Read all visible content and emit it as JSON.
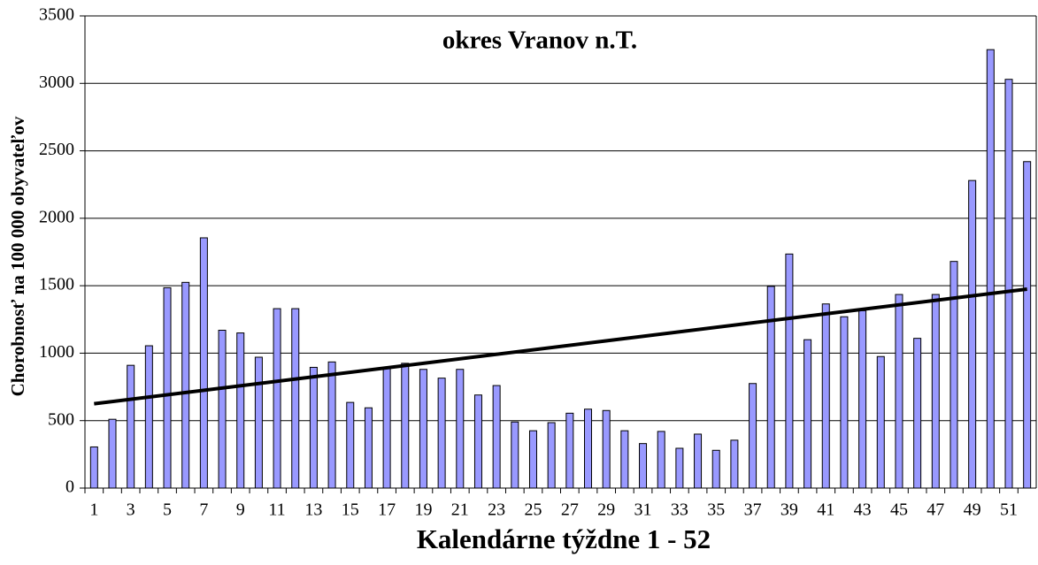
{
  "chart_data": {
    "type": "bar",
    "title": "okres Vranov n.T.",
    "x_label": "Kalendárne týždne 1 - 52",
    "y_label": "Chorobnosť na 100 000 obyvateľov",
    "categories": [
      "1",
      null,
      "3",
      null,
      "5",
      null,
      "7",
      null,
      "9",
      null,
      "11",
      null,
      "13",
      null,
      "15",
      null,
      "17",
      null,
      "19",
      null,
      "21",
      null,
      "23",
      null,
      "25",
      null,
      "27",
      null,
      "29",
      null,
      "31",
      null,
      "33",
      null,
      "35",
      null,
      "37",
      null,
      "39",
      null,
      "41",
      null,
      "43",
      null,
      "45",
      null,
      "47",
      null,
      "49",
      null,
      "51",
      null
    ],
    "values": [
      305,
      510,
      910,
      1055,
      1485,
      1525,
      1855,
      1170,
      1150,
      970,
      1330,
      1330,
      895,
      935,
      635,
      595,
      895,
      925,
      880,
      815,
      880,
      690,
      760,
      490,
      425,
      485,
      555,
      585,
      575,
      425,
      330,
      420,
      295,
      400,
      280,
      355,
      775,
      1495,
      1735,
      1100,
      1365,
      1270,
      1315,
      975,
      1435,
      1110,
      1435,
      1680,
      2280,
      3250,
      3030,
      2420
    ],
    "color": "#9999ff",
    "trendline": [
      625,
      1475
    ],
    "ylim": [
      0,
      3500
    ],
    "yticks": [
      0,
      500,
      1000,
      1500,
      2000,
      2500,
      3000,
      3500
    ],
    "grid": true
  }
}
